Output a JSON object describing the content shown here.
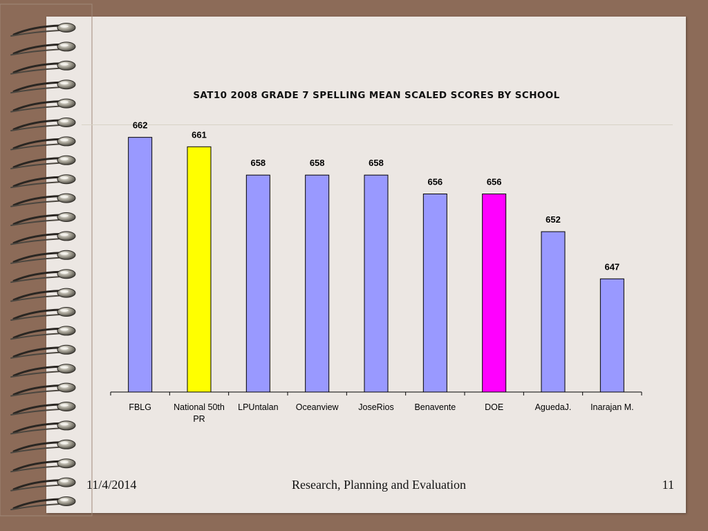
{
  "slide": {
    "footer_date": "11/4/2014",
    "footer_center": "Research, Planning and Evaluation",
    "page_number": "11"
  },
  "chart_data": {
    "type": "bar",
    "title": "SAT10 2008 GRADE 7 SPELLING MEAN SCALED SCORES BY SCHOOL",
    "xlabel": "",
    "ylabel": "",
    "categories": [
      "FBLG",
      "National 50th PR",
      "LPUntalan",
      "Oceanview",
      "JoseRios",
      "Benavente",
      "DOE",
      "AguedaJ.",
      "Inarajan M."
    ],
    "values": [
      662,
      661,
      658,
      658,
      658,
      656,
      656,
      652,
      647
    ],
    "data_labels": [
      "662",
      "661",
      "658",
      "658",
      "658",
      "656",
      "656",
      "652",
      "647"
    ],
    "bar_colors": [
      "#9999ff",
      "#ffff00",
      "#9999ff",
      "#9999ff",
      "#9999ff",
      "#9999ff",
      "#ff00ff",
      "#9999ff",
      "#9999ff"
    ],
    "ylim": [
      635,
      663
    ],
    "grid": false,
    "legend": "none"
  }
}
